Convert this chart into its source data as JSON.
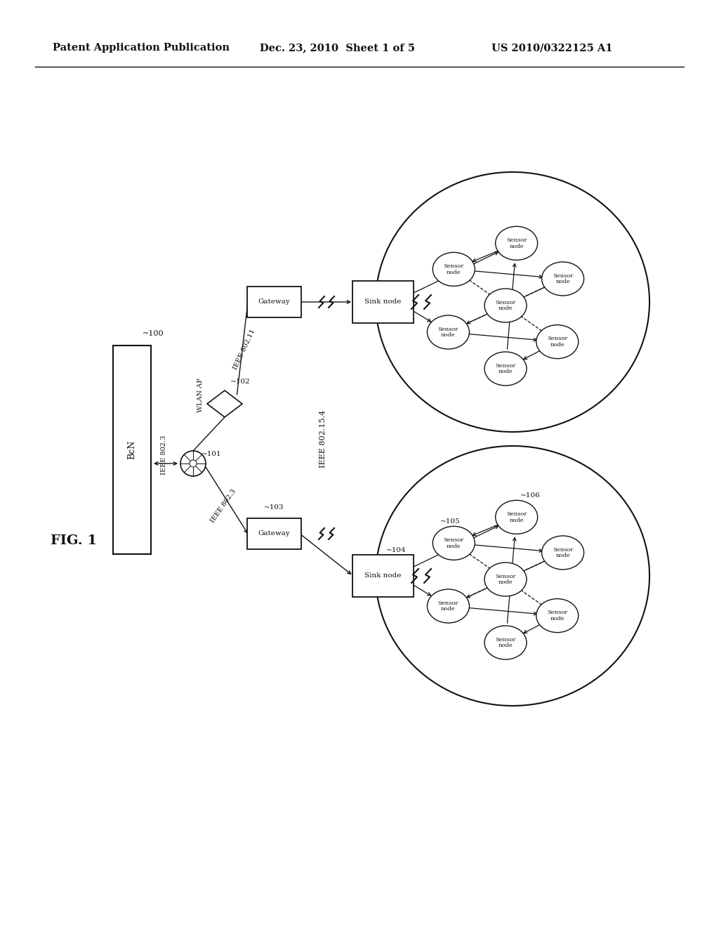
{
  "title_left": "Patent Application Publication",
  "title_mid": "Dec. 23, 2010  Sheet 1 of 5",
  "title_right": "US 2010/0322125 A1",
  "fig_label": "FIG. 1",
  "bg_color": "#ffffff",
  "text_color": "#111111",
  "line_color": "#111111",
  "label_100": "~100",
  "label_101": "~101",
  "label_102": "~102",
  "label_103": "~103",
  "label_104": "~104",
  "label_105": "~105",
  "label_106": "~106",
  "label_ieee80211": "IEEE 802.11",
  "label_ieee8023": "IEEE 802.3",
  "label_ieee802154": "IEEE 802.15.4"
}
